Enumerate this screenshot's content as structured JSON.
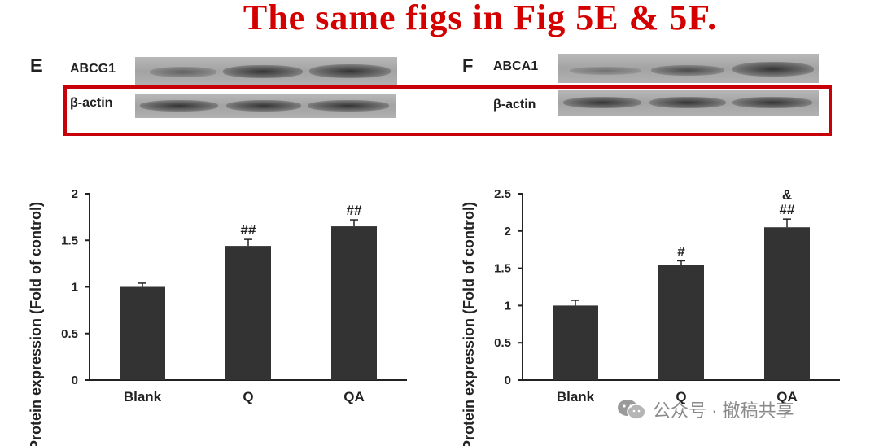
{
  "banner": "The same figs in Fig 5E & 5F.",
  "watermark": {
    "text": "公众号 · 撤稿共享",
    "icon": "wechat-icon"
  },
  "colors": {
    "highlight": "#c8000a",
    "bar": "#333333",
    "banner": "#d40000"
  },
  "panels": [
    {
      "letter": "E",
      "blot_top": "ABCG1",
      "blot_bottom": "β-actin"
    },
    {
      "letter": "F",
      "blot_top": "ABCA1",
      "blot_bottom": "β-actin"
    }
  ],
  "chart_data": [
    {
      "type": "bar",
      "panel": "E",
      "categories": [
        "Blank",
        "Q",
        "QA"
      ],
      "values": [
        1.0,
        1.44,
        1.65
      ],
      "errors": [
        0.04,
        0.07,
        0.07
      ],
      "annotations": [
        "",
        "##",
        "##"
      ],
      "ylabel": "Protein expression (Fold of control)",
      "ylim": [
        0,
        2
      ],
      "yticks": [
        "0",
        "0.5",
        "1",
        "1.5",
        "2"
      ],
      "ytick_values": [
        0,
        0.5,
        1,
        1.5,
        2
      ],
      "grid": false
    },
    {
      "type": "bar",
      "panel": "F",
      "categories": [
        "Blank",
        "Q",
        "QA"
      ],
      "values": [
        1.0,
        1.55,
        2.05
      ],
      "errors": [
        0.07,
        0.05,
        0.11
      ],
      "annotations": [
        "",
        "#",
        "&\n##"
      ],
      "ylabel": "Protein expression (Fold of control)",
      "ylim": [
        0,
        2.5
      ],
      "yticks": [
        "0",
        "0.5",
        "1",
        "1.5",
        "2",
        "2.5"
      ],
      "ytick_values": [
        0,
        0.5,
        1,
        1.5,
        2,
        2.5
      ],
      "grid": false
    }
  ]
}
